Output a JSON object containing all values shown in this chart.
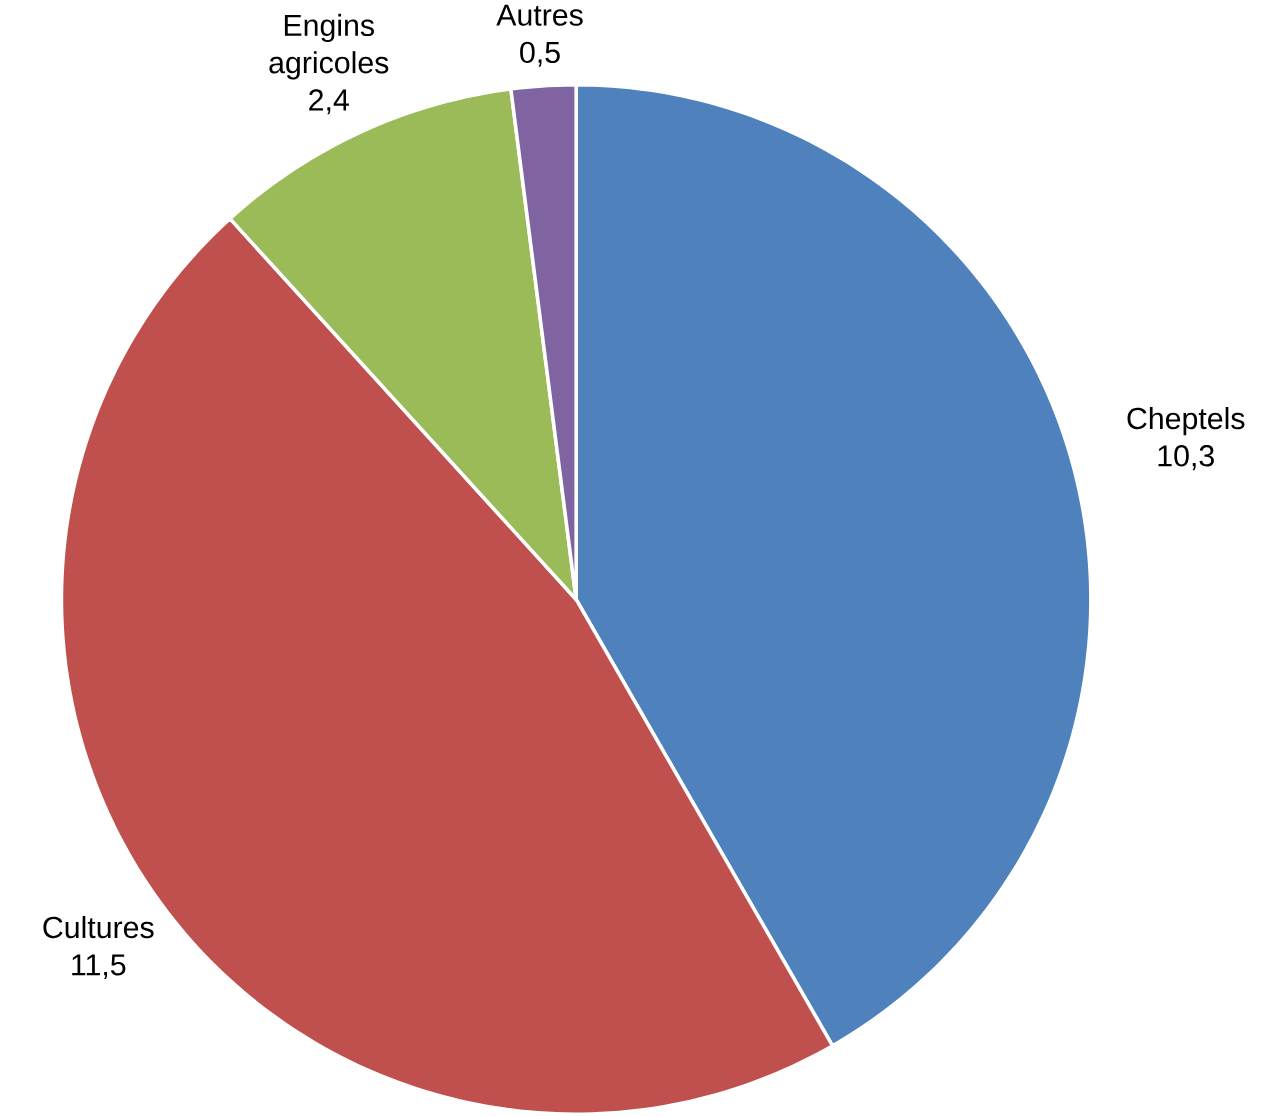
{
  "chart_data": {
    "type": "pie",
    "categories": [
      "Cheptels",
      "Cultures",
      "Engins agricoles",
      "Autres"
    ],
    "values": [
      10.3,
      11.5,
      2.4,
      0.5
    ],
    "value_labels": [
      "10,3",
      "11,5",
      "2,4",
      "0,5"
    ],
    "colors": [
      "#4f81bd",
      "#c0504d",
      "#9bbb59",
      "#8064a2"
    ]
  }
}
